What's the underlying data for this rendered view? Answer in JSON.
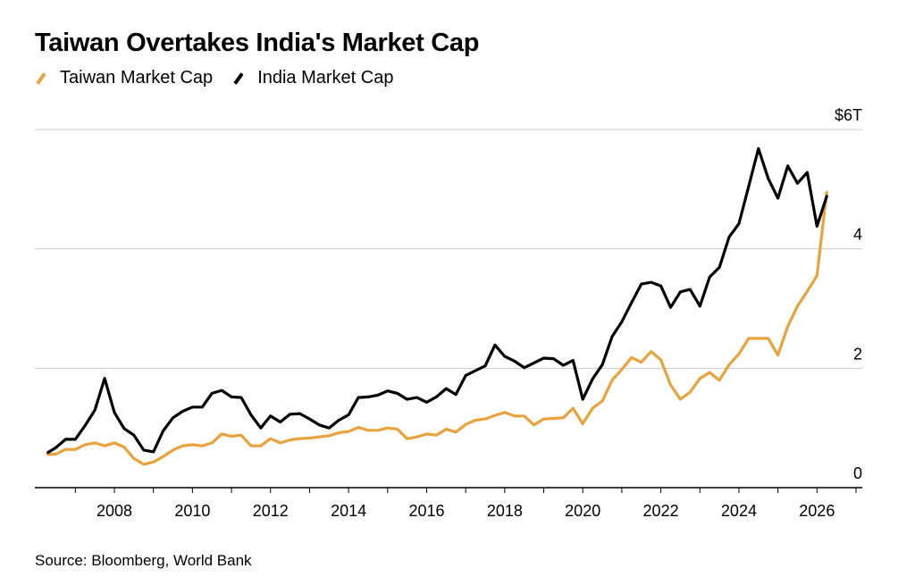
{
  "header": {
    "title": "Taiwan Overtakes India's Market Cap"
  },
  "footer": {
    "source": "Source: Bloomberg, World Bank"
  },
  "colors": {
    "taiwan": "#e8a33c",
    "india": "#000000",
    "grid": "#cccccc"
  },
  "chart_data": {
    "type": "line",
    "title": "Taiwan Overtakes India's Market Cap",
    "xlabel": "",
    "ylabel": "",
    "xlim": [
      2006.1,
      2027.0
    ],
    "ylim": [
      0,
      6
    ],
    "y_ticks": [
      {
        "value": 6,
        "label": "$6T"
      },
      {
        "value": 4,
        "label": "4"
      },
      {
        "value": 2,
        "label": "2"
      },
      {
        "value": 0,
        "label": "0"
      }
    ],
    "x_ticks": [
      {
        "value": 2008,
        "label": "2008"
      },
      {
        "value": 2010,
        "label": "2010"
      },
      {
        "value": 2012,
        "label": "2012"
      },
      {
        "value": 2014,
        "label": "2014"
      },
      {
        "value": 2016,
        "label": "2016"
      },
      {
        "value": 2018,
        "label": "2018"
      },
      {
        "value": 2020,
        "label": "2020"
      },
      {
        "value": 2022,
        "label": "2022"
      },
      {
        "value": 2024,
        "label": "2024"
      },
      {
        "value": 2026,
        "label": "2026"
      }
    ],
    "grid": true,
    "legend_position": "top-left",
    "series": [
      {
        "name": "Taiwan Market Cap",
        "color": "#e8a33c",
        "points": [
          [
            2006.3,
            0.56
          ],
          [
            2006.5,
            0.56
          ],
          [
            2006.75,
            0.64
          ],
          [
            2007.0,
            0.64
          ],
          [
            2007.25,
            0.72
          ],
          [
            2007.5,
            0.75
          ],
          [
            2007.75,
            0.7
          ],
          [
            2008.0,
            0.75
          ],
          [
            2008.25,
            0.68
          ],
          [
            2008.5,
            0.49
          ],
          [
            2008.75,
            0.39
          ],
          [
            2009.0,
            0.43
          ],
          [
            2009.25,
            0.52
          ],
          [
            2009.5,
            0.63
          ],
          [
            2009.75,
            0.7
          ],
          [
            2010.0,
            0.72
          ],
          [
            2010.25,
            0.7
          ],
          [
            2010.5,
            0.75
          ],
          [
            2010.75,
            0.9
          ],
          [
            2011.0,
            0.86
          ],
          [
            2011.25,
            0.88
          ],
          [
            2011.5,
            0.7
          ],
          [
            2011.75,
            0.7
          ],
          [
            2012.0,
            0.82
          ],
          [
            2012.25,
            0.75
          ],
          [
            2012.5,
            0.8
          ],
          [
            2012.75,
            0.82
          ],
          [
            2013.0,
            0.83
          ],
          [
            2013.25,
            0.85
          ],
          [
            2013.5,
            0.87
          ],
          [
            2013.75,
            0.92
          ],
          [
            2014.0,
            0.94
          ],
          [
            2014.25,
            1.01
          ],
          [
            2014.5,
            0.96
          ],
          [
            2014.75,
            0.96
          ],
          [
            2015.0,
            1.0
          ],
          [
            2015.25,
            0.98
          ],
          [
            2015.5,
            0.82
          ],
          [
            2015.75,
            0.85
          ],
          [
            2016.0,
            0.9
          ],
          [
            2016.25,
            0.88
          ],
          [
            2016.5,
            0.98
          ],
          [
            2016.75,
            0.93
          ],
          [
            2017.0,
            1.06
          ],
          [
            2017.25,
            1.13
          ],
          [
            2017.5,
            1.15
          ],
          [
            2017.75,
            1.21
          ],
          [
            2018.0,
            1.26
          ],
          [
            2018.25,
            1.2
          ],
          [
            2018.5,
            1.2
          ],
          [
            2018.75,
            1.05
          ],
          [
            2019.0,
            1.15
          ],
          [
            2019.25,
            1.16
          ],
          [
            2019.5,
            1.17
          ],
          [
            2019.75,
            1.33
          ],
          [
            2020.0,
            1.07
          ],
          [
            2020.25,
            1.33
          ],
          [
            2020.5,
            1.45
          ],
          [
            2020.75,
            1.8
          ],
          [
            2021.0,
            1.98
          ],
          [
            2021.25,
            2.18
          ],
          [
            2021.5,
            2.1
          ],
          [
            2021.75,
            2.28
          ],
          [
            2022.0,
            2.14
          ],
          [
            2022.25,
            1.72
          ],
          [
            2022.5,
            1.48
          ],
          [
            2022.75,
            1.6
          ],
          [
            2023.0,
            1.83
          ],
          [
            2023.25,
            1.93
          ],
          [
            2023.5,
            1.8
          ],
          [
            2023.75,
            2.06
          ],
          [
            2024.0,
            2.24
          ],
          [
            2024.25,
            2.5
          ],
          [
            2024.5,
            2.5
          ],
          [
            2024.75,
            2.5
          ],
          [
            2025.0,
            2.22
          ],
          [
            2025.25,
            2.7
          ],
          [
            2025.5,
            3.04
          ],
          [
            2025.75,
            3.29
          ],
          [
            2026.0,
            3.55
          ],
          [
            2026.25,
            4.95
          ]
        ]
      },
      {
        "name": "India Market Cap",
        "color": "#000000",
        "points": [
          [
            2006.3,
            0.59
          ],
          [
            2006.5,
            0.67
          ],
          [
            2006.75,
            0.81
          ],
          [
            2007.0,
            0.81
          ],
          [
            2007.25,
            1.04
          ],
          [
            2007.5,
            1.3
          ],
          [
            2007.75,
            1.83
          ],
          [
            2008.0,
            1.26
          ],
          [
            2008.25,
            0.99
          ],
          [
            2008.5,
            0.88
          ],
          [
            2008.75,
            0.63
          ],
          [
            2009.0,
            0.6
          ],
          [
            2009.25,
            0.95
          ],
          [
            2009.5,
            1.17
          ],
          [
            2009.75,
            1.28
          ],
          [
            2010.0,
            1.35
          ],
          [
            2010.25,
            1.35
          ],
          [
            2010.5,
            1.58
          ],
          [
            2010.75,
            1.63
          ],
          [
            2011.0,
            1.52
          ],
          [
            2011.25,
            1.51
          ],
          [
            2011.5,
            1.22
          ],
          [
            2011.75,
            1.0
          ],
          [
            2012.0,
            1.2
          ],
          [
            2012.25,
            1.1
          ],
          [
            2012.5,
            1.23
          ],
          [
            2012.75,
            1.24
          ],
          [
            2013.0,
            1.15
          ],
          [
            2013.25,
            1.05
          ],
          [
            2013.5,
            1.0
          ],
          [
            2013.75,
            1.13
          ],
          [
            2014.0,
            1.22
          ],
          [
            2014.25,
            1.51
          ],
          [
            2014.5,
            1.52
          ],
          [
            2014.75,
            1.55
          ],
          [
            2015.0,
            1.62
          ],
          [
            2015.25,
            1.58
          ],
          [
            2015.5,
            1.48
          ],
          [
            2015.75,
            1.51
          ],
          [
            2016.0,
            1.43
          ],
          [
            2016.25,
            1.52
          ],
          [
            2016.5,
            1.66
          ],
          [
            2016.75,
            1.56
          ],
          [
            2017.0,
            1.88
          ],
          [
            2017.25,
            1.96
          ],
          [
            2017.5,
            2.04
          ],
          [
            2017.75,
            2.39
          ],
          [
            2018.0,
            2.2
          ],
          [
            2018.25,
            2.12
          ],
          [
            2018.5,
            2.01
          ],
          [
            2018.75,
            2.09
          ],
          [
            2019.0,
            2.17
          ],
          [
            2019.25,
            2.16
          ],
          [
            2019.5,
            2.05
          ],
          [
            2019.75,
            2.13
          ],
          [
            2020.0,
            1.48
          ],
          [
            2020.25,
            1.82
          ],
          [
            2020.5,
            2.06
          ],
          [
            2020.75,
            2.53
          ],
          [
            2021.0,
            2.78
          ],
          [
            2021.25,
            3.1
          ],
          [
            2021.5,
            3.41
          ],
          [
            2021.75,
            3.44
          ],
          [
            2022.0,
            3.38
          ],
          [
            2022.25,
            3.02
          ],
          [
            2022.5,
            3.28
          ],
          [
            2022.75,
            3.32
          ],
          [
            2023.0,
            3.04
          ],
          [
            2023.25,
            3.53
          ],
          [
            2023.5,
            3.69
          ],
          [
            2023.75,
            4.2
          ],
          [
            2024.0,
            4.42
          ],
          [
            2024.25,
            5.05
          ],
          [
            2024.5,
            5.68
          ],
          [
            2024.75,
            5.18
          ],
          [
            2025.0,
            4.85
          ],
          [
            2025.25,
            5.39
          ],
          [
            2025.5,
            5.1
          ],
          [
            2025.75,
            5.28
          ],
          [
            2026.0,
            4.38
          ],
          [
            2026.25,
            4.88
          ]
        ]
      }
    ]
  }
}
